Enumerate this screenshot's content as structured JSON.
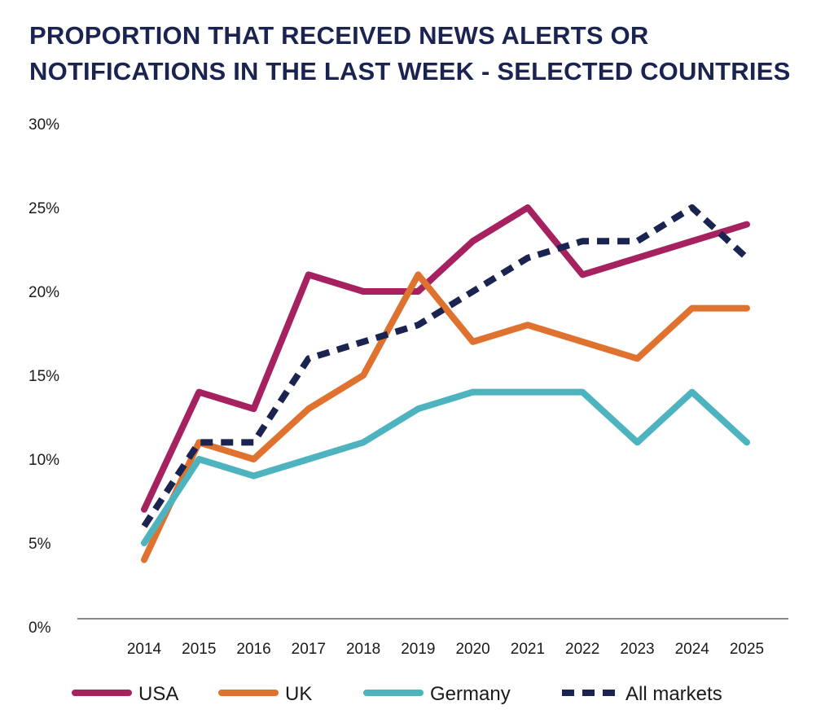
{
  "chart_data": {
    "type": "line",
    "title_lines": [
      "PROPORTION THAT RECEIVED NEWS ALERTS OR",
      "NOTIFICATIONS IN THE LAST WEEK - SELECTED COUNTRIES"
    ],
    "x": [
      "2014",
      "2015",
      "2016",
      "2017",
      "2018",
      "2019",
      "2020",
      "2021",
      "2022",
      "2023",
      "2024",
      "2025"
    ],
    "yticks": [
      "0%",
      "5%",
      "10%",
      "15%",
      "20%",
      "25%",
      "30%"
    ],
    "ylim": [
      0,
      30
    ],
    "grid": false,
    "legend_position": "bottom",
    "series": [
      {
        "name": "USA",
        "color": "#a6215f",
        "dashed": false,
        "values": [
          7,
          14,
          13,
          21,
          20,
          20,
          23,
          25,
          21,
          22,
          23,
          24
        ]
      },
      {
        "name": "UK",
        "color": "#e07230",
        "dashed": false,
        "values": [
          4,
          11,
          10,
          13,
          15,
          21,
          17,
          18,
          17,
          16,
          19,
          19
        ]
      },
      {
        "name": "Germany",
        "color": "#4db3bf",
        "dashed": false,
        "values": [
          5,
          10,
          9,
          10,
          11,
          13,
          14,
          14,
          14,
          11,
          14,
          11
        ]
      },
      {
        "name": "All markets",
        "color": "#1b2450",
        "dashed": true,
        "values": [
          6,
          11,
          11,
          16,
          17,
          18,
          20,
          22,
          23,
          23,
          25,
          22
        ]
      }
    ]
  }
}
